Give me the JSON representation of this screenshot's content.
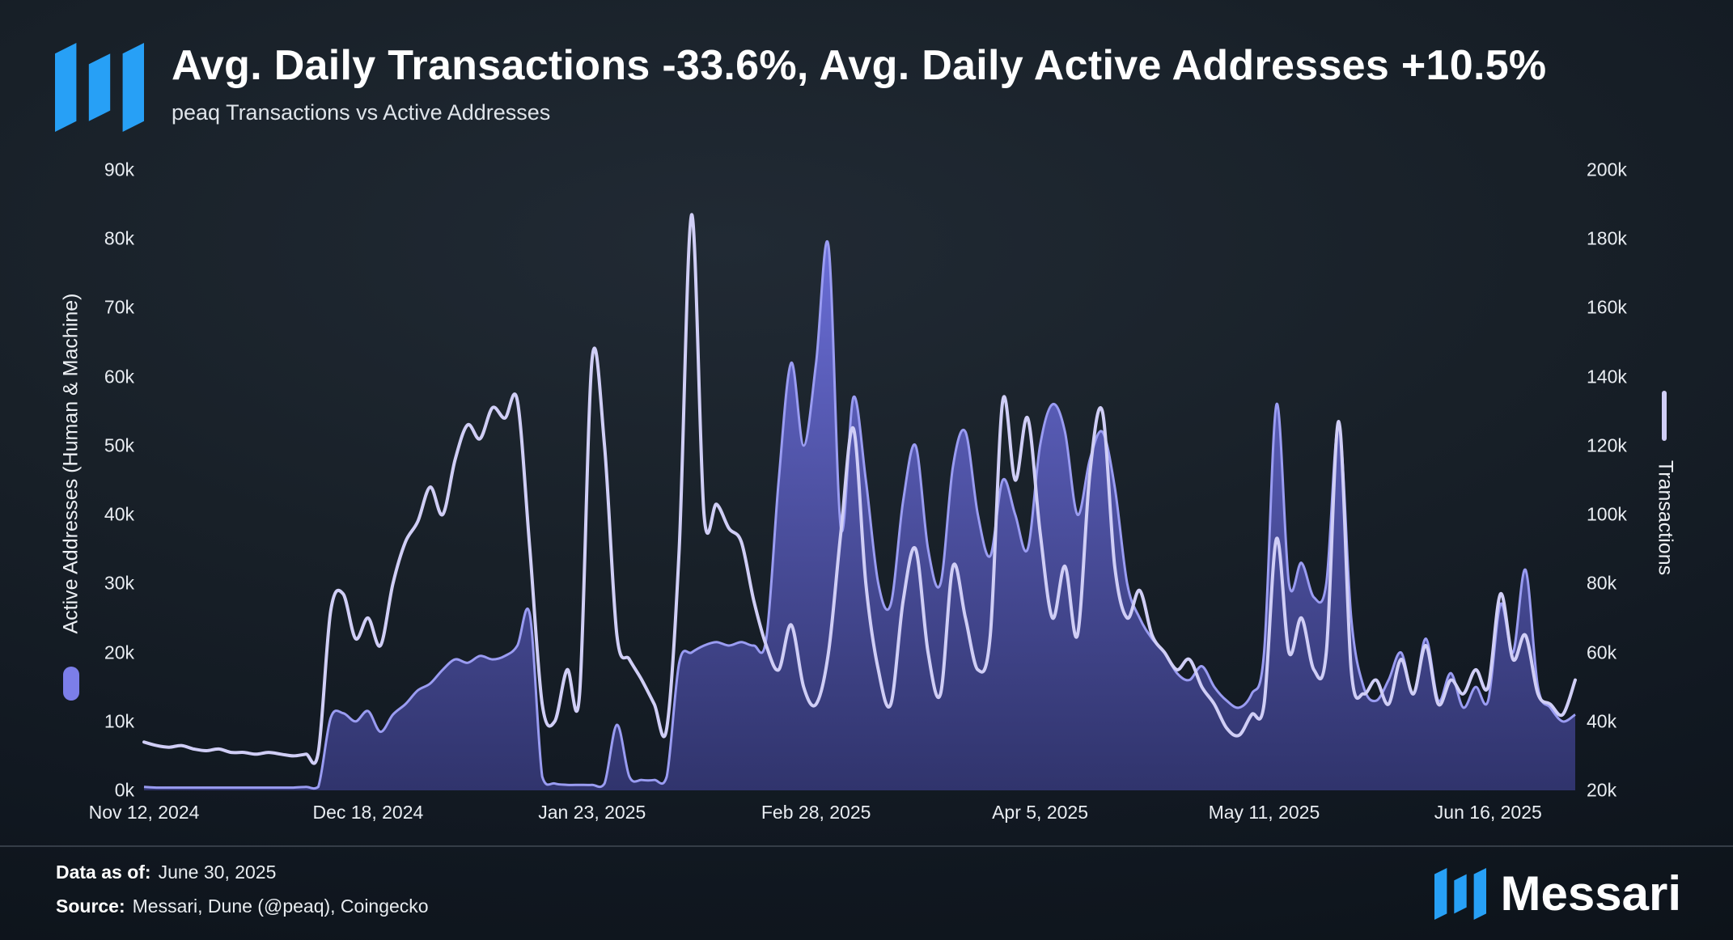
{
  "header": {
    "title": "Avg. Daily Transactions -33.6%, Avg. Daily Active Addresses +10.5%",
    "subtitle": "peaq Transactions vs Active Addresses"
  },
  "footer": {
    "data_as_of_label": "Data as of:",
    "data_as_of_value": "June 30, 2025",
    "source_label": "Source:",
    "source_value": "Messari, Dune (@peaq), Coingecko",
    "brand_wordmark": "Messari"
  },
  "colors": {
    "background": "#131a22",
    "brand_blue": "#27a0f6",
    "addresses_fill_top": "#6e71e0",
    "addresses_fill_bottom": "#373a7d",
    "addresses_stroke": "#9a9cf2",
    "transactions_line": "#d0cef6",
    "text_primary": "#ffffff",
    "text_secondary": "#e9edf2"
  },
  "chart_data": {
    "type": "line",
    "title": "Avg. Daily Transactions -33.6%, Avg. Daily Active Addresses +10.5%",
    "subtitle": "peaq Transactions vs Active Addresses",
    "grid": false,
    "legend_position": "axis-labels",
    "x_axis": {
      "start_date": "Nov 12, 2024",
      "end_date": "Jun 30, 2025",
      "domain_days": [
        0,
        230
      ],
      "tick_days": [
        0,
        36,
        72,
        108,
        144,
        180,
        216
      ],
      "tick_labels": [
        "Nov 12, 2024",
        "Dec 18, 2024",
        "Jan 23, 2025",
        "Feb 28, 2025",
        "Apr 5, 2025",
        "May 11, 2025",
        "Jun 16, 2025"
      ]
    },
    "left_axis": {
      "label": "Active Addresses (Human & Machine)",
      "min": 0,
      "max": 90000,
      "tick_labels": [
        "0k",
        "10k",
        "20k",
        "30k",
        "40k",
        "50k",
        "60k",
        "70k",
        "80k",
        "90k"
      ]
    },
    "right_axis": {
      "label": "Transactions",
      "min": 20000,
      "max": 200000,
      "tick_labels": [
        "20k",
        "40k",
        "60k",
        "80k",
        "100k",
        "120k",
        "140k",
        "160k",
        "180k",
        "200k"
      ]
    },
    "values_unit": "thousands",
    "x_days": [
      0,
      2,
      4,
      6,
      8,
      10,
      12,
      14,
      16,
      18,
      20,
      22,
      24,
      26,
      28,
      30,
      32,
      34,
      36,
      38,
      40,
      42,
      44,
      46,
      48,
      50,
      52,
      54,
      56,
      58,
      60,
      62,
      64,
      66,
      68,
      70,
      72,
      74,
      76,
      78,
      80,
      82,
      84,
      86,
      88,
      90,
      92,
      94,
      96,
      98,
      100,
      102,
      104,
      106,
      108,
      110,
      112,
      114,
      116,
      118,
      120,
      122,
      124,
      126,
      128,
      130,
      132,
      134,
      136,
      138,
      140,
      142,
      144,
      146,
      148,
      150,
      152,
      154,
      156,
      158,
      160,
      162,
      164,
      166,
      168,
      170,
      172,
      174,
      176,
      178,
      180,
      182,
      184,
      186,
      188,
      190,
      192,
      194,
      196,
      198,
      200,
      202,
      204,
      206,
      208,
      210,
      212,
      214,
      216,
      218,
      220,
      222,
      224,
      226,
      228,
      230
    ],
    "series": [
      {
        "name": "Active Addresses (Human & Machine)",
        "axis": "left",
        "style": "area",
        "avg_daily_change_pct": 10.5,
        "values_k": [
          0.5,
          0.4,
          0.4,
          0.4,
          0.4,
          0.4,
          0.4,
          0.4,
          0.4,
          0.4,
          0.4,
          0.4,
          0.4,
          0.5,
          0.5,
          10.5,
          11.2,
          10,
          11.5,
          8.5,
          11,
          12.5,
          14.5,
          15.5,
          17.5,
          19,
          18.5,
          19.5,
          19,
          19.5,
          21,
          25.5,
          2,
          1,
          0.8,
          0.8,
          0.8,
          1,
          9.5,
          2,
          1.5,
          1.5,
          2,
          18.5,
          20,
          21,
          21.5,
          21,
          21.5,
          21,
          22,
          45,
          62,
          50,
          62,
          79,
          38,
          57,
          45,
          30,
          27,
          42,
          50,
          35,
          30,
          47,
          52,
          40,
          34,
          45,
          40,
          35,
          50,
          56,
          52,
          40,
          48,
          52,
          44,
          30,
          25,
          22,
          20,
          17,
          16,
          18,
          15,
          13,
          12,
          14,
          20,
          56,
          30,
          33,
          28,
          30,
          53,
          25,
          15,
          13,
          16,
          20,
          14,
          22,
          13,
          17,
          12,
          15,
          13,
          27,
          20,
          32,
          15,
          12,
          10,
          11
        ]
      },
      {
        "name": "Transactions",
        "axis": "right",
        "style": "line",
        "avg_daily_change_pct": -33.6,
        "values_k": [
          34,
          33,
          32.5,
          33,
          32,
          31.5,
          32,
          31,
          31,
          30.5,
          31,
          30.5,
          30,
          30.5,
          31,
          72,
          77,
          64,
          70,
          62,
          80,
          92,
          98,
          108,
          100,
          116,
          126,
          122,
          131,
          128,
          133,
          90,
          45,
          40,
          55,
          48,
          145,
          120,
          65,
          58,
          52,
          45,
          38,
          90,
          187,
          100,
          103,
          96,
          92,
          75,
          62,
          55,
          68,
          50,
          45,
          60,
          95,
          125,
          80,
          55,
          45,
          75,
          90,
          60,
          48,
          85,
          70,
          55,
          65,
          133,
          110,
          128,
          95,
          70,
          85,
          65,
          112,
          130,
          85,
          70,
          78,
          65,
          60,
          55,
          58,
          50,
          45,
          38,
          36,
          42,
          45,
          93,
          60,
          70,
          55,
          60,
          127,
          55,
          48,
          52,
          45,
          58,
          48,
          62,
          45,
          52,
          48,
          55,
          50,
          77,
          58,
          65,
          48,
          45,
          42,
          52
        ]
      }
    ]
  }
}
